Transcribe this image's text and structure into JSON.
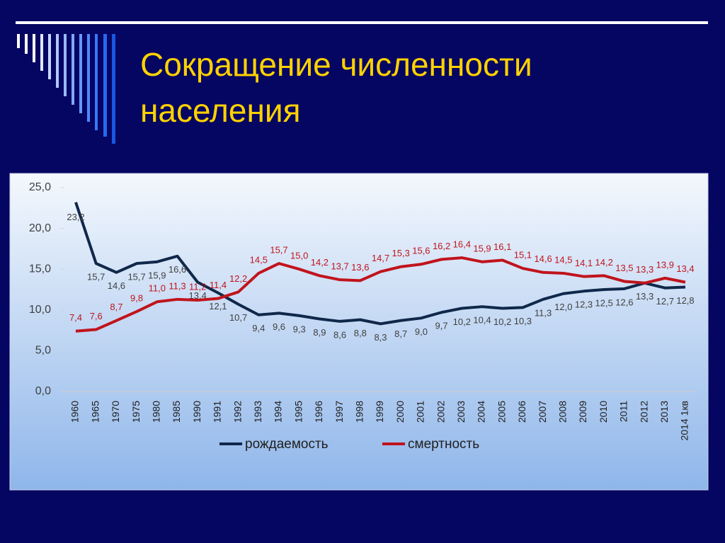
{
  "chart_data": {
    "type": "line",
    "title_lines": [
      "Сокращение численности",
      "населения"
    ],
    "categories": [
      "1960",
      "1965",
      "1970",
      "1975",
      "1980",
      "1985",
      "1990",
      "1991",
      "1992",
      "1993",
      "1994",
      "1995",
      "1996",
      "1997",
      "1998",
      "1999",
      "2000",
      "2001",
      "2002",
      "2003",
      "2004",
      "2005",
      "2006",
      "2007",
      "2008",
      "2009",
      "2010",
      "2011",
      "2012",
      "2013",
      "2014 1кв"
    ],
    "series": [
      {
        "name": "рождаемость",
        "color": "#10284a",
        "values": [
          23.2,
          15.7,
          14.6,
          15.7,
          15.9,
          16.6,
          13.4,
          12.1,
          10.7,
          9.4,
          9.6,
          9.3,
          8.9,
          8.6,
          8.8,
          8.3,
          8.7,
          9.0,
          9.7,
          10.2,
          10.4,
          10.2,
          10.3,
          11.3,
          12.0,
          12.3,
          12.5,
          12.6,
          13.3,
          12.7,
          12.8
        ],
        "value_labels": [
          "23,2",
          "15,7",
          "14,6",
          "15,7",
          "15,9",
          "16,6",
          "13,4",
          "12,1",
          "10,7",
          "9,4",
          "9,6",
          "9,3",
          "8,9",
          "8,6",
          "8,8",
          "8,3",
          "8,7",
          "9,0",
          "9,7",
          "10,2",
          "10,4",
          "10,2",
          "10,3",
          "11,3",
          "12,0",
          "12,3",
          "12,5",
          "12,6",
          "13,3",
          "12,7",
          "12,8"
        ],
        "label_color": "#404040"
      },
      {
        "name": "смертность",
        "color": "#c0141c",
        "values": [
          7.4,
          7.6,
          8.7,
          9.8,
          11.0,
          11.3,
          11.2,
          11.4,
          12.2,
          14.5,
          15.7,
          15.0,
          14.2,
          13.7,
          13.6,
          14.7,
          15.3,
          15.6,
          16.2,
          16.4,
          15.9,
          16.1,
          15.1,
          14.6,
          14.5,
          14.1,
          14.2,
          13.5,
          13.3,
          13.9,
          13.4
        ],
        "value_labels": [
          "7,4",
          "7,6",
          "8,7",
          "9,8",
          "11,0",
          "11,3",
          "11,2",
          "11,4",
          "12,2",
          "14,5",
          "15,7",
          "15,0",
          "14,2",
          "13,7",
          "13,6",
          "14,7",
          "15,3",
          "15,6",
          "16,2",
          "16,4",
          "15,9",
          "16,1",
          "15,1",
          "14,6",
          "14,5",
          "14,1",
          "14,2",
          "13,5",
          "13,3",
          "13,9",
          "13,4"
        ],
        "label_color": "#c0141c"
      }
    ],
    "ylim": [
      0,
      25
    ],
    "yticks": [
      {
        "value": 0,
        "label": "0,0"
      },
      {
        "value": 5,
        "label": "5,0"
      },
      {
        "value": 10,
        "label": "10,0"
      },
      {
        "value": 15,
        "label": "15,0"
      },
      {
        "value": 20,
        "label": "20,0"
      },
      {
        "value": 25,
        "label": "25,0"
      }
    ],
    "grid": false
  }
}
